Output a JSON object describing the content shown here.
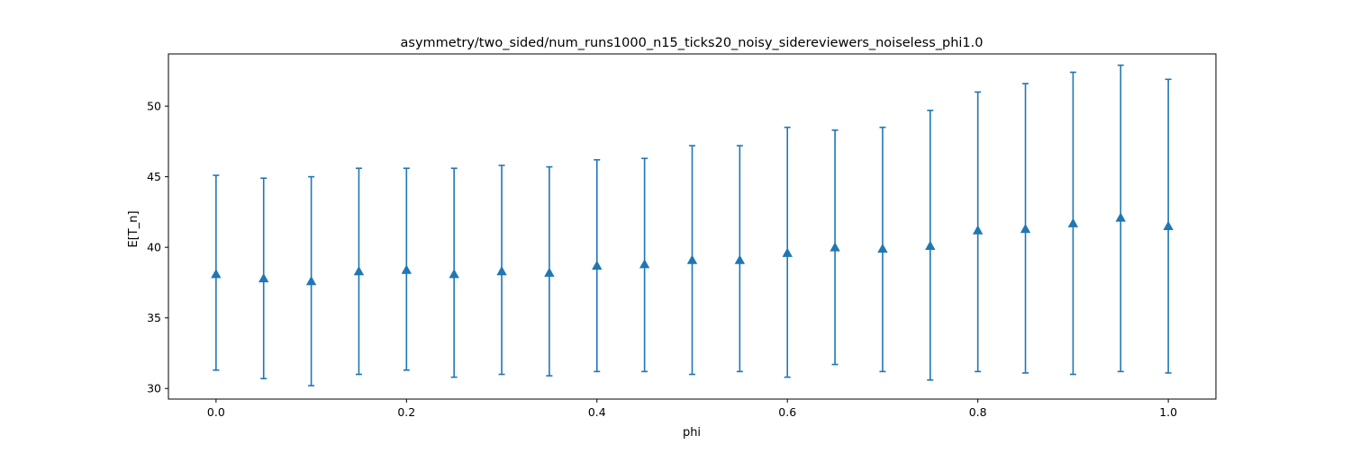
{
  "chart_data": {
    "type": "scatter",
    "title": "asymmetry/two_sided/num_runs1000_n15_ticks20_noisy_sidereviewers_noiseless_phi1.0",
    "xlabel": "phi",
    "ylabel": "E[T_n]",
    "xlim": [
      -0.05,
      1.05
    ],
    "ylim": [
      29.25,
      53.7
    ],
    "xticks": [
      0.0,
      0.2,
      0.4,
      0.6,
      0.8,
      1.0
    ],
    "xtick_labels": [
      "0.0",
      "0.2",
      "0.4",
      "0.6",
      "0.8",
      "1.0"
    ],
    "yticks": [
      30,
      35,
      40,
      45,
      50
    ],
    "ytick_labels": [
      "30",
      "35",
      "40",
      "45",
      "50"
    ],
    "grid": false,
    "legend": "none",
    "color": "#1f77b4",
    "marker": "triangle-up",
    "errorbars": true,
    "series": [
      {
        "x": [
          0.0,
          0.05,
          0.1,
          0.15,
          0.2,
          0.25,
          0.3,
          0.35,
          0.4,
          0.45,
          0.5,
          0.55,
          0.6,
          0.65,
          0.7,
          0.75,
          0.8,
          0.85,
          0.9,
          0.95,
          1.0
        ],
        "y": [
          38.1,
          37.8,
          37.6,
          38.3,
          38.4,
          38.1,
          38.3,
          38.2,
          38.7,
          38.8,
          39.1,
          39.1,
          39.6,
          40.0,
          39.9,
          40.1,
          41.2,
          41.3,
          41.7,
          42.1,
          41.5
        ],
        "yerr_low": [
          31.3,
          30.7,
          30.2,
          31.0,
          31.3,
          30.8,
          31.0,
          30.9,
          31.2,
          31.2,
          31.0,
          31.2,
          30.8,
          31.7,
          31.2,
          30.6,
          31.2,
          31.1,
          31.0,
          31.2,
          31.1
        ],
        "yerr_high": [
          45.1,
          44.9,
          45.0,
          45.6,
          45.6,
          45.6,
          45.8,
          45.7,
          46.2,
          46.3,
          47.2,
          47.2,
          48.5,
          48.3,
          48.5,
          49.7,
          51.0,
          51.6,
          52.4,
          52.9,
          51.9
        ]
      }
    ]
  }
}
